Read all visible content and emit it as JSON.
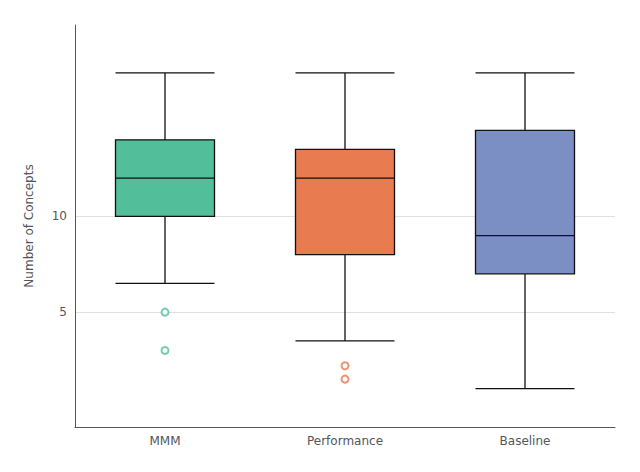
{
  "chart_data": {
    "type": "box",
    "categories": [
      "MMM",
      "Performance",
      "Baseline"
    ],
    "values": [
      [
        6.5,
        10.0,
        12.0,
        14.0,
        17.5
      ],
      [
        3.5,
        8.0,
        12.0,
        13.5,
        17.5
      ],
      [
        1.0,
        7.0,
        9.0,
        14.5,
        17.5
      ]
    ],
    "outliers": [
      [
        5.0,
        3.0
      ],
      [
        2.2,
        1.5
      ],
      []
    ],
    "colors": [
      "#52BF9A",
      "#E87B50",
      "#7B8FC4"
    ],
    "ylabel": "Number of Concepts",
    "ylim": [
      -1,
      20
    ],
    "yticks": [
      5,
      10
    ],
    "grid": true
  }
}
